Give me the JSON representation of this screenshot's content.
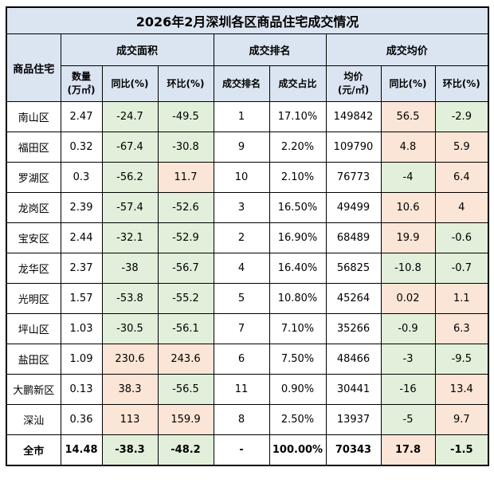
{
  "colors": {
    "header_bg": "#dbe4f1",
    "positive_bg": "#fbe5d6",
    "negative_bg": "#e2efda",
    "border": "#000000",
    "text": "#000000",
    "page_bg": "#ffffff"
  },
  "chart_data": {
    "type": "table",
    "title": "2026年2月深圳各区商品住宅成交情况",
    "corner_label": "商品住宅",
    "group_headers": [
      "成交面积",
      "成交排名",
      "成交均价"
    ],
    "columns": [
      "数量\n(万㎡)",
      "同比(%)",
      "环比(%)",
      "成交排名",
      "成交占比",
      "均价\n(元/㎡)",
      "同比(%)",
      "环比(%)"
    ],
    "conditional_color_columns": [
      2,
      3,
      7,
      8
    ],
    "total_label": "全市",
    "rows": [
      [
        "南山区",
        "2.47",
        "-24.7",
        "-49.5",
        "1",
        "17.10%",
        "149842",
        "56.5",
        "-2.9"
      ],
      [
        "福田区",
        "0.32",
        "-67.4",
        "-30.8",
        "9",
        "2.20%",
        "109790",
        "4.8",
        "5.9"
      ],
      [
        "罗湖区",
        "0.3",
        "-56.2",
        "11.7",
        "10",
        "2.10%",
        "76773",
        "-4",
        "6.4"
      ],
      [
        "龙岗区",
        "2.39",
        "-57.4",
        "-52.6",
        "3",
        "16.50%",
        "49499",
        "10.6",
        "4"
      ],
      [
        "宝安区",
        "2.44",
        "-32.1",
        "-52.9",
        "2",
        "16.90%",
        "68489",
        "19.9",
        "-0.6"
      ],
      [
        "龙华区",
        "2.37",
        "-38",
        "-56.7",
        "4",
        "16.40%",
        "56825",
        "-10.8",
        "-0.7"
      ],
      [
        "光明区",
        "1.57",
        "-53.8",
        "-55.2",
        "5",
        "10.80%",
        "45264",
        "0.02",
        "1.1"
      ],
      [
        "坪山区",
        "1.03",
        "-30.5",
        "-56.1",
        "7",
        "7.10%",
        "35266",
        "-0.9",
        "6.3"
      ],
      [
        "盐田区",
        "1.09",
        "230.6",
        "243.6",
        "6",
        "7.50%",
        "48466",
        "-3",
        "-9.5"
      ],
      [
        "大鹏新区",
        "0.13",
        "38.3",
        "-56.5",
        "11",
        "0.90%",
        "30441",
        "-16",
        "13.4"
      ],
      [
        "深汕",
        "0.36",
        "113",
        "159.9",
        "8",
        "2.50%",
        "13937",
        "-5",
        "9.7"
      ],
      [
        "全市",
        "14.48",
        "-38.3",
        "-48.2",
        "-",
        "100.00%",
        "70343",
        "17.8",
        "-1.5"
      ]
    ]
  }
}
